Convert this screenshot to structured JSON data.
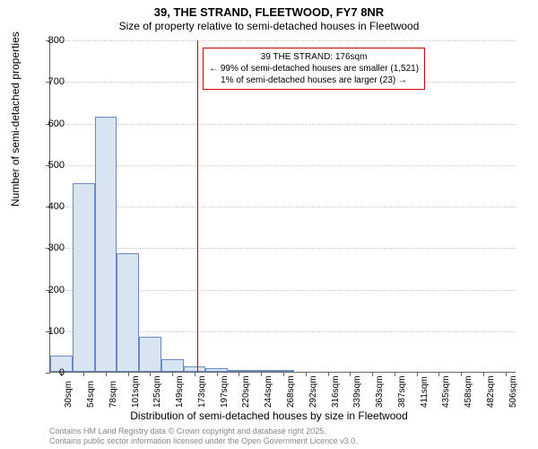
{
  "chart": {
    "type": "histogram",
    "title_main": "39, THE STRAND, FLEETWOOD, FY7 8NR",
    "title_sub": "Size of property relative to semi-detached houses in Fleetwood",
    "y_axis_label": "Number of semi-detached properties",
    "x_axis_label": "Distribution of semi-detached houses by size in Fleetwood",
    "ylim": [
      0,
      800
    ],
    "ytick_step": 100,
    "yticks": [
      0,
      100,
      200,
      300,
      400,
      500,
      600,
      700,
      800
    ],
    "xticks": [
      "30sqm",
      "54sqm",
      "78sqm",
      "101sqm",
      "125sqm",
      "149sqm",
      "173sqm",
      "197sqm",
      "220sqm",
      "244sqm",
      "268sqm",
      "292sqm",
      "316sqm",
      "339sqm",
      "363sqm",
      "387sqm",
      "411sqm",
      "435sqm",
      "458sqm",
      "482sqm",
      "506sqm"
    ],
    "bars": [
      {
        "label": "30sqm",
        "value": 40
      },
      {
        "label": "54sqm",
        "value": 455
      },
      {
        "label": "78sqm",
        "value": 615
      },
      {
        "label": "101sqm",
        "value": 285
      },
      {
        "label": "125sqm",
        "value": 85
      },
      {
        "label": "149sqm",
        "value": 30
      },
      {
        "label": "173sqm",
        "value": 12
      },
      {
        "label": "197sqm",
        "value": 8
      },
      {
        "label": "220sqm",
        "value": 4
      },
      {
        "label": "244sqm",
        "value": 3
      },
      {
        "label": "268sqm",
        "value": 2
      },
      {
        "label": "292sqm",
        "value": 0
      },
      {
        "label": "316sqm",
        "value": 0
      },
      {
        "label": "339sqm",
        "value": 0
      },
      {
        "label": "363sqm",
        "value": 0
      },
      {
        "label": "387sqm",
        "value": 0
      },
      {
        "label": "411sqm",
        "value": 0
      },
      {
        "label": "435sqm",
        "value": 0
      },
      {
        "label": "458sqm",
        "value": 0
      },
      {
        "label": "482sqm",
        "value": 0
      },
      {
        "label": "506sqm",
        "value": 0
      }
    ],
    "bar_fill": "#d8e4f2",
    "bar_border": "#6b8abf",
    "grid_color": "#cccccc",
    "background_color": "#ffffff",
    "marker_value_sqm": 176,
    "marker_color": "#cc0000",
    "annotation": {
      "line1": "39 THE STRAND: 176sqm",
      "line2": "← 99% of semi-detached houses are smaller (1,521)",
      "line3": "1% of semi-detached houses are larger (23) →"
    },
    "footer_line1": "Contains HM Land Registry data © Crown copyright and database right 2025.",
    "footer_line2": "Contains public sector information licensed under the Open Government Licence v3.0."
  }
}
